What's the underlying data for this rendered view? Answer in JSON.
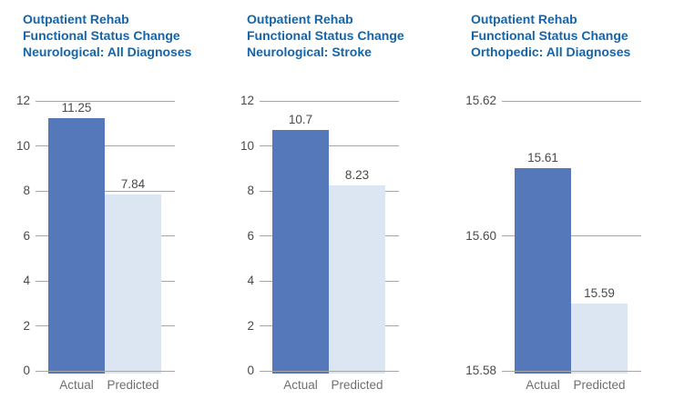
{
  "page": {
    "background": "#FFFFFF"
  },
  "colors": {
    "title_text": "#1365AB",
    "actual_bar": "#5478BA",
    "predicted_bar": "#DBE6F2",
    "gridline": "#A6A6A6",
    "tick_label_text": "#4A4A4A",
    "value_label_text": "#4A4A4A",
    "category_label_text": "#6F6F6F"
  },
  "chart_data": [
    {
      "type": "bar",
      "title": "Outpatient Rehab Functional Status Change Neurological: All Diagnoses",
      "title_lines": [
        "Outpatient Rehab",
        "Functional Status Change",
        "Neurological: All Diagnoses"
      ],
      "categories": [
        "Actual",
        "Predicted"
      ],
      "values": [
        11.25,
        7.84
      ],
      "value_labels": [
        "11.25",
        "7.84"
      ],
      "ylim": [
        0,
        12
      ],
      "yticks": [
        0,
        2,
        4,
        6,
        8,
        10,
        12
      ],
      "ytick_labels": [
        "0",
        "2",
        "4",
        "6",
        "8",
        "10",
        "12"
      ],
      "xlabel": "",
      "ylabel": "",
      "grid": true,
      "legend": false
    },
    {
      "type": "bar",
      "title": "Outpatient Rehab Functional Status Change Neurological: Stroke",
      "title_lines": [
        "Outpatient Rehab",
        "Functional Status Change",
        "Neurological: Stroke"
      ],
      "categories": [
        "Actual",
        "Predicted"
      ],
      "values": [
        10.7,
        8.23
      ],
      "value_labels": [
        "10.7",
        "8.23"
      ],
      "ylim": [
        0,
        12
      ],
      "yticks": [
        0,
        2,
        4,
        6,
        8,
        10,
        12
      ],
      "ytick_labels": [
        "0",
        "2",
        "4",
        "6",
        "8",
        "10",
        "12"
      ],
      "xlabel": "",
      "ylabel": "",
      "grid": true,
      "legend": false
    },
    {
      "type": "bar",
      "title": "Outpatient Rehab Functional Status Change Orthopedic: All Diagnoses",
      "title_lines": [
        "Outpatient Rehab",
        "Functional Status Change",
        "Orthopedic: All Diagnoses"
      ],
      "categories": [
        "Actual",
        "Predicted"
      ],
      "values": [
        15.61,
        15.59
      ],
      "value_labels": [
        "15.61",
        "15.59"
      ],
      "ylim": [
        15.58,
        15.62
      ],
      "yticks": [
        15.58,
        15.6,
        15.62
      ],
      "ytick_labels": [
        "15.58",
        "15.60",
        "15.62"
      ],
      "xlabel": "",
      "ylabel": "",
      "grid": true,
      "legend": false
    }
  ]
}
